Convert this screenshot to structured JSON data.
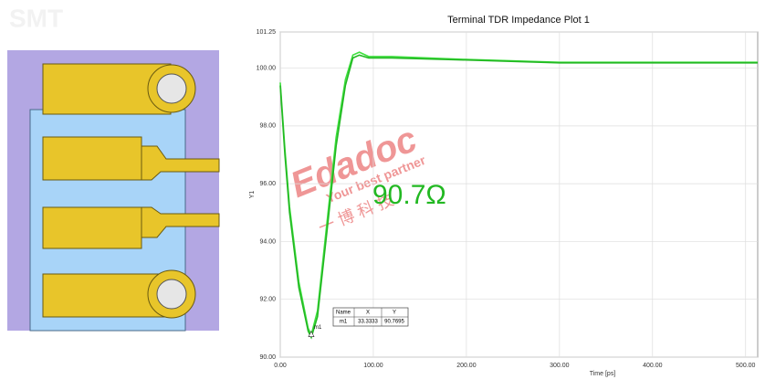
{
  "left_panel": {
    "label": "SMT"
  },
  "watermark": {
    "brand": "Edadoc",
    "slogan": "Your best partner",
    "chinese": "一 博 科 技"
  },
  "chart_data": {
    "type": "line",
    "title": "Terminal TDR Impedance Plot 1",
    "xlabel": "Time [ps]",
    "ylabel": "Y1",
    "x": [
      0,
      5,
      10,
      20,
      30,
      33.33,
      40,
      50,
      60,
      70,
      78,
      85,
      95,
      120,
      200,
      300,
      400,
      513
    ],
    "series": [
      {
        "color": "#3ee03e",
        "values": [
          99.5,
          97.2,
          95.2,
          92.6,
          91.0,
          90.77,
          91.6,
          94.6,
          97.6,
          99.6,
          100.45,
          100.55,
          100.4,
          100.4,
          100.3,
          100.2,
          100.2,
          100.2
        ]
      },
      {
        "color": "#22b822",
        "values": [
          99.4,
          97.0,
          95.0,
          92.4,
          90.9,
          90.68,
          91.4,
          94.3,
          97.3,
          99.4,
          100.35,
          100.45,
          100.35,
          100.35,
          100.28,
          100.18,
          100.18,
          100.18
        ]
      }
    ],
    "xlim": [
      0,
      513
    ],
    "ylim": [
      90,
      101.25
    ],
    "xticks": [
      {
        "value": 0,
        "label": "0.00"
      },
      {
        "value": 100,
        "label": "100.00"
      },
      {
        "value": 200,
        "label": "200.00"
      },
      {
        "value": 300,
        "label": "300.00"
      },
      {
        "value": 400,
        "label": "400.00"
      },
      {
        "value": 500,
        "label": "500.00"
      }
    ],
    "yticks": [
      {
        "value": 90,
        "label": "90.00"
      },
      {
        "value": 92,
        "label": "92.00"
      },
      {
        "value": 94,
        "label": "94.00"
      },
      {
        "value": 96,
        "label": "96.00"
      },
      {
        "value": 98,
        "label": "98.00"
      },
      {
        "value": 100,
        "label": "100.00"
      },
      {
        "value": 101.25,
        "label": "101.25"
      }
    ],
    "grid": true,
    "annotation": "90.7Ω",
    "marker": {
      "name": "m1",
      "x": 33.3333,
      "y": 90.7695,
      "table_header": [
        "Name",
        "X",
        "Y"
      ]
    }
  }
}
